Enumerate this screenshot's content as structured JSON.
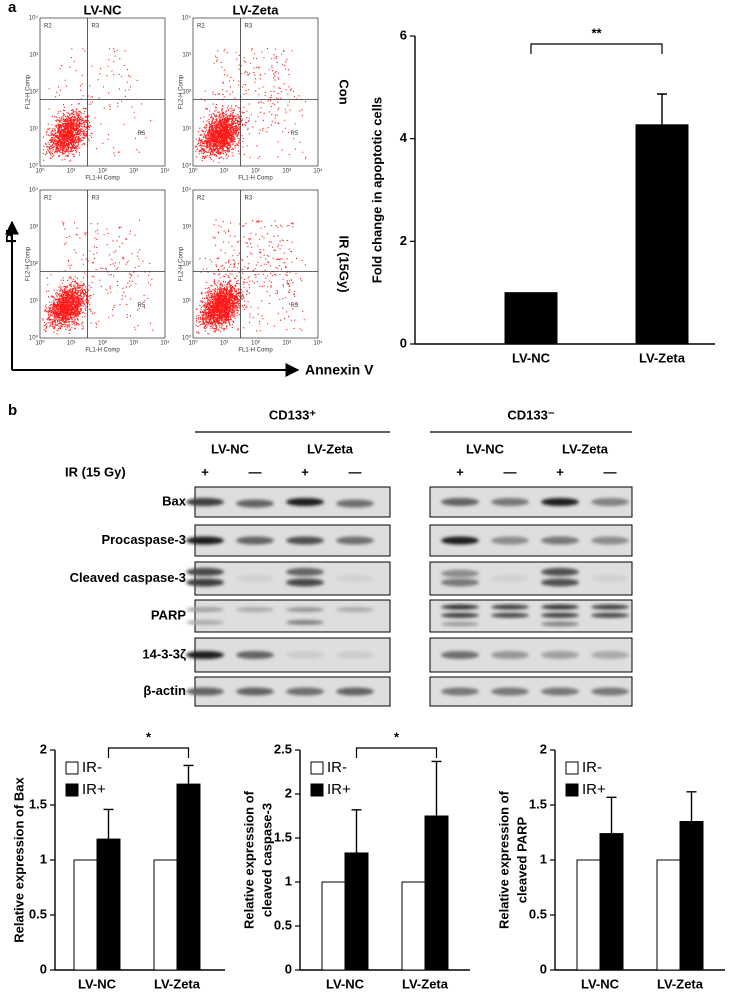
{
  "panel_a": {
    "label": "a",
    "flow": {
      "columns": [
        "LV-NC",
        "LV-Zeta"
      ],
      "rows": [
        "Con",
        "IR (15Gy)"
      ],
      "x_label": "Annexin V",
      "y_label": "PI",
      "plot": {
        "x_axis": "FL1-H Comp",
        "y_axis": "FL2-H Comp",
        "ticks": [
          "10⁰",
          "10¹",
          "10²",
          "10³",
          "10⁴"
        ],
        "regions": [
          "R2",
          "R3",
          "R5"
        ]
      }
    }
  },
  "panel_b": {
    "label": "b",
    "blot": {
      "groups": [
        {
          "name": "CD133⁺",
          "lines": [
            "LV-NC",
            "LV-Zeta"
          ]
        },
        {
          "name": "CD133⁻",
          "lines": [
            "LV-NC",
            "LV-Zeta"
          ]
        }
      ],
      "treatment_label": "IR (15 Gy)",
      "treatment": [
        "+",
        "—",
        "+",
        "—"
      ],
      "rows": [
        "Bax",
        "Procaspase-3",
        "Cleaved caspase-3",
        "PARP",
        "14-3-3ζ",
        "β-actin"
      ]
    }
  },
  "chart_data": [
    {
      "type": "bar",
      "y_label": [
        "Fold change in apoptotic cells"
      ],
      "categories": [
        "LV-NC",
        "LV-Zeta"
      ],
      "values": [
        1,
        4.27
      ],
      "errors": [
        0,
        0.6
      ],
      "color": "#000000",
      "ylim": [
        0,
        6
      ],
      "yticks": [
        0,
        2,
        4,
        6
      ],
      "annotation": "**"
    },
    {
      "type": "grouped_bar",
      "y_label": [
        "Relative expression of Bax"
      ],
      "categories": [
        "LV-NC",
        "LV-Zeta"
      ],
      "series": [
        {
          "name": "IR-",
          "color": "#ffffff",
          "values": [
            1,
            1
          ]
        },
        {
          "name": "IR+",
          "color": "#000000",
          "values": [
            1.19,
            1.69
          ],
          "errors": [
            0.27,
            0.17
          ]
        }
      ],
      "ylim": [
        0,
        2
      ],
      "yticks": [
        0,
        0.5,
        1,
        1.5,
        2
      ],
      "legend": "upper left",
      "annotation": "*"
    },
    {
      "type": "grouped_bar",
      "y_label": [
        "Relative expression of",
        "cleaved caspase-3"
      ],
      "categories": [
        "LV-NC",
        "LV-Zeta"
      ],
      "series": [
        {
          "name": "IR-",
          "color": "#ffffff",
          "values": [
            1,
            1
          ]
        },
        {
          "name": "IR+",
          "color": "#000000",
          "values": [
            1.33,
            1.75
          ],
          "errors": [
            0.49,
            0.62
          ]
        }
      ],
      "ylim": [
        0,
        2.5
      ],
      "yticks": [
        0,
        0.5,
        1,
        1.5,
        2,
        2.5
      ],
      "legend": "upper left",
      "annotation": "*"
    },
    {
      "type": "grouped_bar",
      "y_label": [
        "Relative expression of",
        "cleaved PARP"
      ],
      "categories": [
        "LV-NC",
        "LV-Zeta"
      ],
      "series": [
        {
          "name": "IR-",
          "color": "#ffffff",
          "values": [
            1,
            1
          ]
        },
        {
          "name": "IR+",
          "color": "#000000",
          "values": [
            1.24,
            1.35
          ],
          "errors": [
            0.33,
            0.27
          ]
        }
      ],
      "ylim": [
        0,
        2
      ],
      "yticks": [
        0,
        0.5,
        1,
        1.5,
        2
      ],
      "legend": "upper left"
    }
  ]
}
